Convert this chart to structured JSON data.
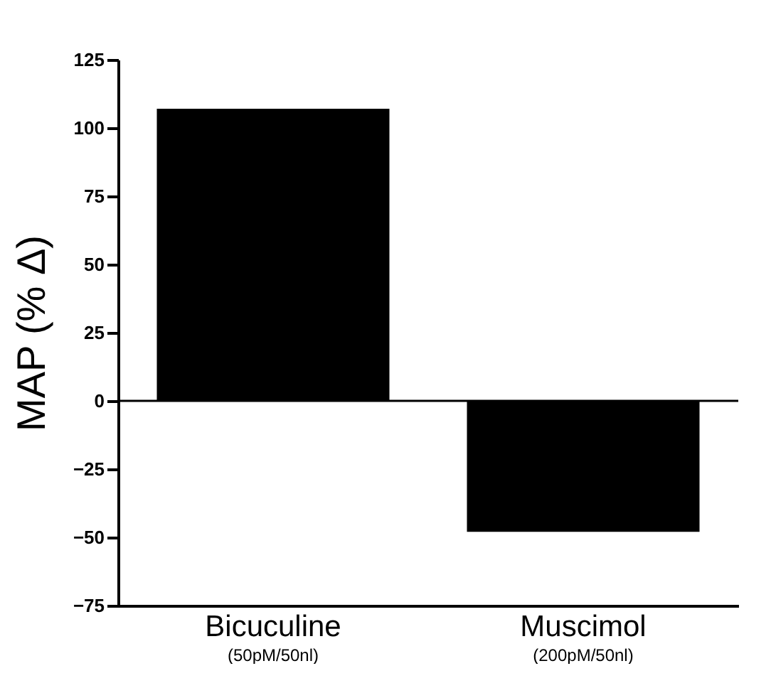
{
  "chart_data": {
    "type": "bar",
    "ylabel": "MAP (% Δ)",
    "categories": [
      "Bicuculine\n(50pM/50nl)",
      "Muscimol\n(200pM/50nl)"
    ],
    "values": [
      107,
      -48
    ],
    "color": "#000000",
    "ylim": [
      -75,
      125
    ],
    "yticks": [
      -75,
      -50,
      -25,
      0,
      25,
      50,
      75,
      100,
      125
    ],
    "ref_lines": [
      {
        "axis": "y",
        "value": 0
      }
    ],
    "grid": false
  }
}
